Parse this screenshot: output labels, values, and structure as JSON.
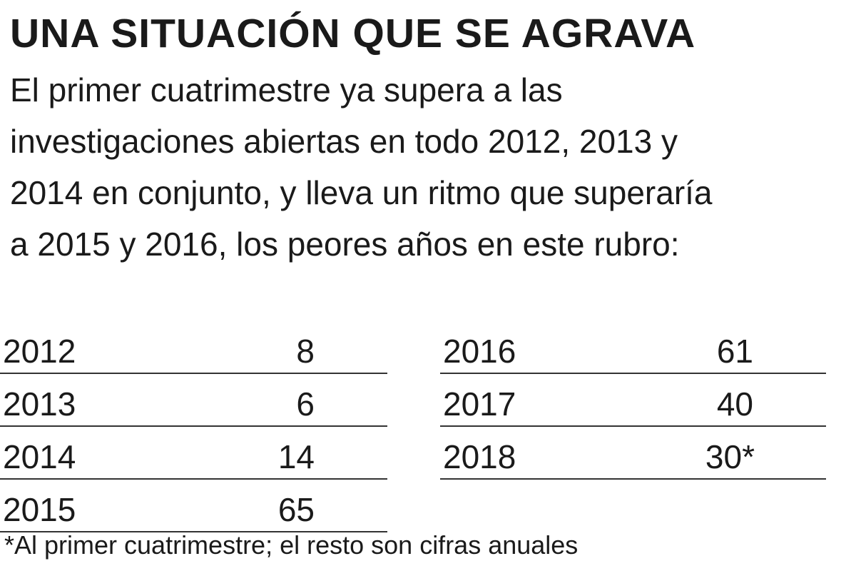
{
  "header": {
    "title": "UNA SITUACIÓN QUE SE AGRAVA",
    "subtitle_lines": [
      "El primer cuatrimestre ya supera a las",
      "investigaciones abiertas en todo 2012, 2013 y",
      "2014 en conjunto, y lleva un ritmo que superaría",
      "a 2015 y 2016, los peores años en este rubro:"
    ]
  },
  "table": {
    "left": [
      [
        "2012",
        "8"
      ],
      [
        "2013",
        "6"
      ],
      [
        "2014",
        "14"
      ],
      [
        "2015",
        "65"
      ]
    ],
    "right": [
      [
        "2016",
        "61"
      ],
      [
        "2017",
        "40"
      ],
      [
        "2018",
        "30*"
      ]
    ]
  },
  "footnote": "*Al primer cuatrimestre; el resto son cifras anuales"
}
